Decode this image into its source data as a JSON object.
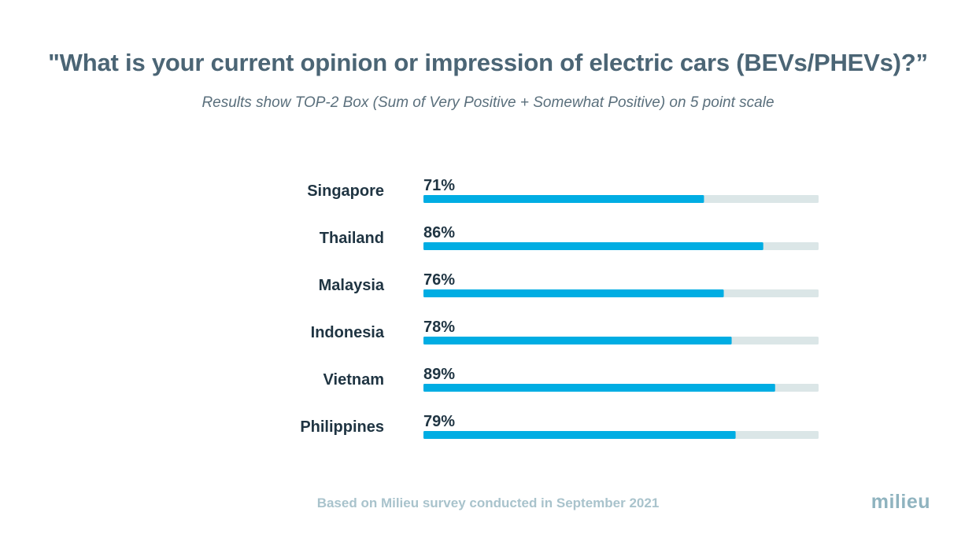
{
  "title": "\"What is your current opinion or impression of electric cars (BEVs/PHEVs)?”",
  "subtitle": "Results show TOP-2 Box (Sum of Very Positive + Somewhat Positive) on 5 point scale",
  "footer_note": "Based on Milieu survey conducted in September 2021",
  "logo_text": "milieu",
  "colors": {
    "bar": "#00ade3",
    "track": "#dbe6e7",
    "label": "#1f3442",
    "title": "#4b6575",
    "footer": "#a9c3cc",
    "logo": "#8fb3bf"
  },
  "chart_data": {
    "type": "bar",
    "orientation": "horizontal",
    "categories": [
      "Singapore",
      "Thailand",
      "Malaysia",
      "Indonesia",
      "Vietnam",
      "Philippines"
    ],
    "values": [
      71,
      86,
      76,
      78,
      89,
      79
    ],
    "value_labels": [
      "71%",
      "86%",
      "76%",
      "78%",
      "89%",
      "79%"
    ],
    "xlim": [
      0,
      100
    ],
    "unit": "%",
    "title": "\"What is your current opinion or impression of electric cars (BEVs/PHEVs)?”",
    "subtitle": "Results show TOP-2 Box (Sum of Very Positive + Somewhat Positive) on 5 point scale",
    "grid": false,
    "legend": "none"
  }
}
